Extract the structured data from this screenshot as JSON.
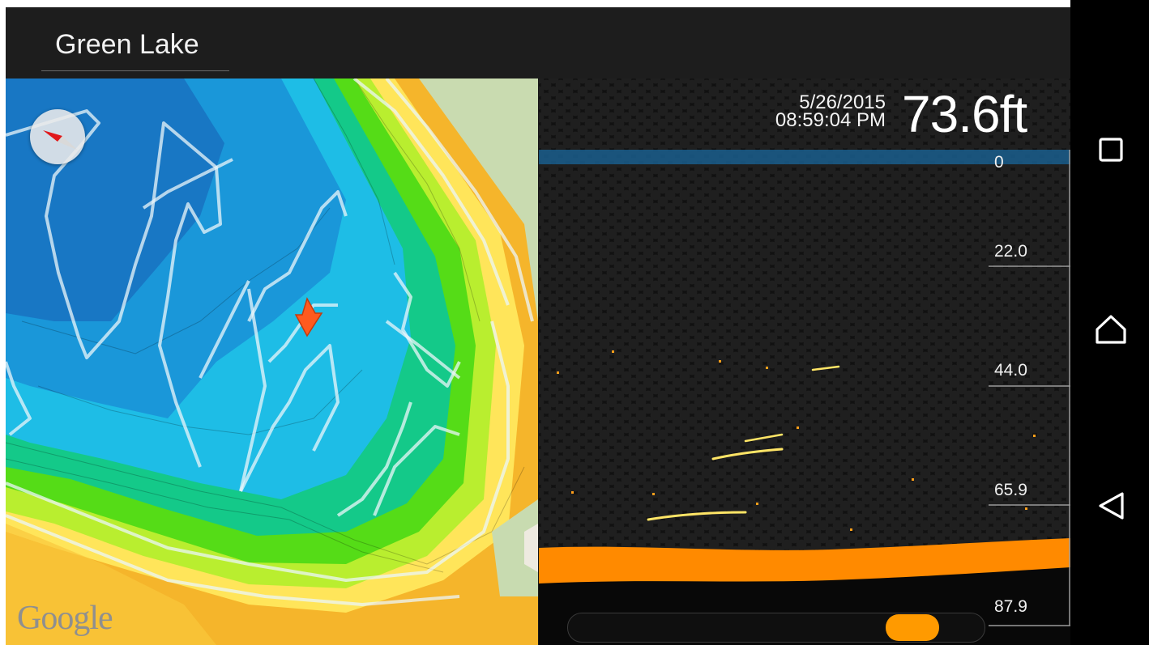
{
  "titlebar": {
    "location_name": "Green Lake"
  },
  "map": {
    "attribution": "Google",
    "compass_icon": "compass-icon",
    "boat_icon": "boat-position-arrow-icon"
  },
  "sonar": {
    "date": "5/26/2015",
    "time": "08:59:04 PM",
    "current_depth": "73.6ft",
    "depth_scale": [
      "0",
      "22.0",
      "44.0",
      "65.9",
      "87.9"
    ],
    "history_slider": {
      "position_fraction": 0.82
    },
    "colors": {
      "surface": "#1a5a86",
      "bottom": "#ff8a00",
      "fish_return": "#ffe566"
    }
  },
  "nav": {
    "recents_icon": "square-recents-icon",
    "home_icon": "home-icon",
    "back_icon": "back-triangle-icon"
  }
}
